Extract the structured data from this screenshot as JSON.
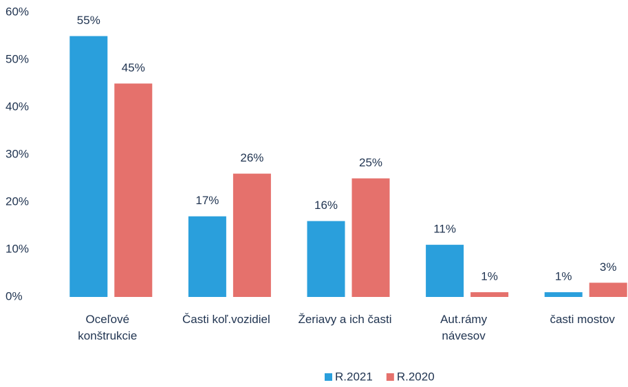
{
  "chart_data": {
    "type": "bar",
    "categories": [
      "Oceľové\nkonštrukcie",
      "Časti koľ.vozidiel",
      "Žeriavy a ich časti",
      "Aut.rámy\nnávesov",
      "časti mostov"
    ],
    "series": [
      {
        "name": "R.2021",
        "color": "#2a9fdc",
        "values": [
          55,
          17,
          16,
          11,
          1
        ],
        "value_labels": [
          "55%",
          "17%",
          "16%",
          "11%",
          "1%"
        ]
      },
      {
        "name": "R.2020",
        "color": "#e5716c",
        "values": [
          45,
          26,
          25,
          1,
          3
        ],
        "value_labels": [
          "45%",
          "26%",
          "25%",
          "1%",
          "3%"
        ]
      }
    ],
    "ylim": [
      0,
      60
    ],
    "yticks": [
      {
        "value": 0,
        "label": "0%"
      },
      {
        "value": 10,
        "label": "10%"
      },
      {
        "value": 20,
        "label": "20%"
      },
      {
        "value": 30,
        "label": "30%"
      },
      {
        "value": 40,
        "label": "40%"
      },
      {
        "value": 50,
        "label": "50%"
      },
      {
        "value": 60,
        "label": "60%"
      }
    ],
    "grid": false,
    "legend": "bottom"
  }
}
